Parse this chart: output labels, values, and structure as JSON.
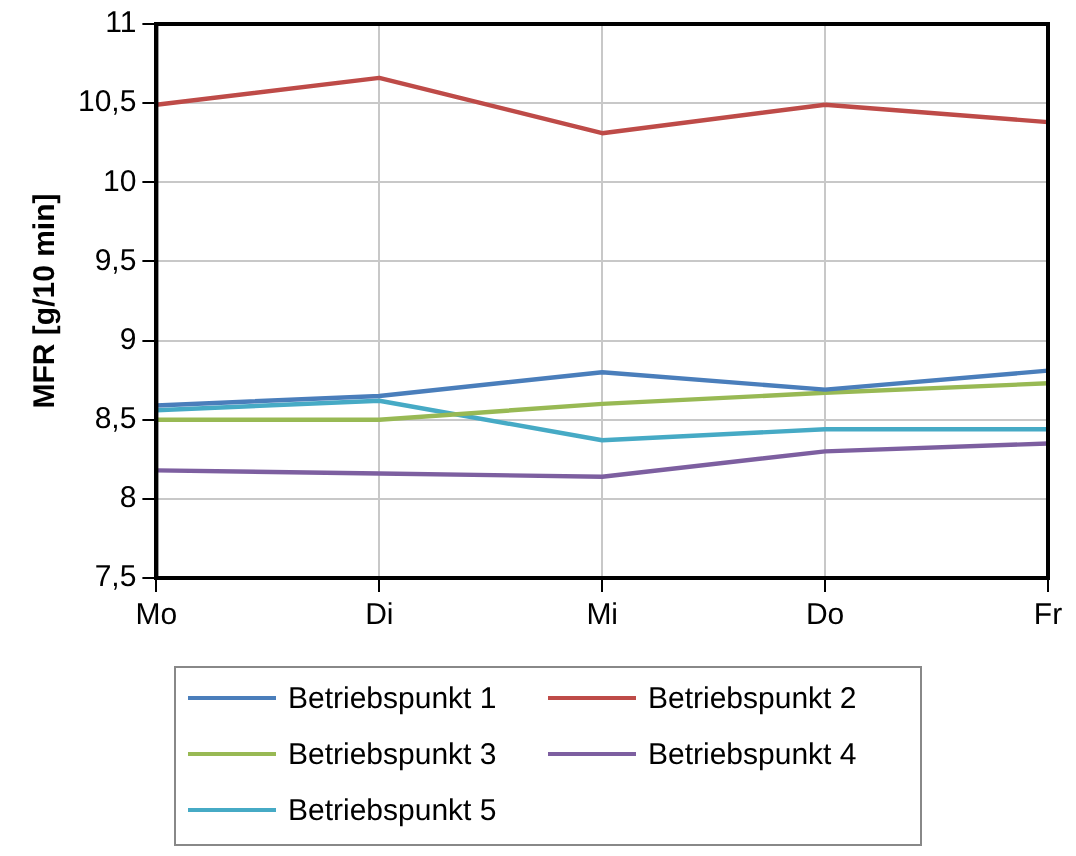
{
  "chart_data": {
    "type": "line",
    "ylabel": "MFR [g/10 min]",
    "categories": [
      "Mo",
      "Di",
      "Mi",
      "Do",
      "Fr"
    ],
    "series": [
      {
        "name": "Betriebspunkt 1",
        "color": "#4a7ebb",
        "values": [
          8.59,
          8.65,
          8.8,
          8.69,
          8.81
        ]
      },
      {
        "name": "Betriebspunkt 2",
        "color": "#be4b48",
        "values": [
          10.49,
          10.66,
          10.31,
          10.49,
          10.38
        ]
      },
      {
        "name": "Betriebspunkt 3",
        "color": "#98b954",
        "values": [
          8.5,
          8.5,
          8.6,
          8.67,
          8.73
        ]
      },
      {
        "name": "Betriebspunkt 4",
        "color": "#7d5fa0",
        "values": [
          8.18,
          8.16,
          8.14,
          8.3,
          8.35
        ]
      },
      {
        "name": "Betriebspunkt 5",
        "color": "#46aac5",
        "values": [
          8.56,
          8.62,
          8.37,
          8.44,
          8.44
        ]
      }
    ],
    "ylim": [
      7.5,
      11
    ],
    "yticks": [
      {
        "value": 7.5,
        "label": "7,5"
      },
      8,
      {
        "value": 8.5,
        "label": "8,5"
      },
      9,
      {
        "value": 9.5,
        "label": "9,5"
      },
      10,
      {
        "value": 10.5,
        "label": "10,5"
      },
      11
    ],
    "grid": true,
    "legend": "bottom",
    "marker": "none",
    "line_style": "solid"
  }
}
